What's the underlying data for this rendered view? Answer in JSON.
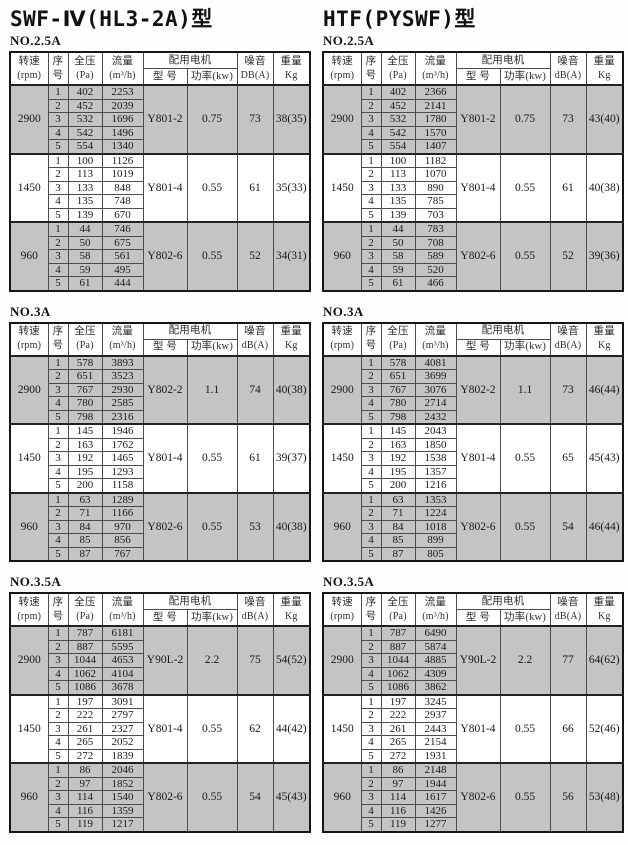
{
  "row_numbers": [
    "1",
    "2",
    "3",
    "4",
    "5"
  ],
  "header": {
    "speed": "转速",
    "speed_unit": "(rpm)",
    "seq_top": "序",
    "seq_bottom": "号",
    "pressure": "全压",
    "pressure_unit": "(Pa)",
    "flow": "流量",
    "flow_unit": "(m³/h)",
    "motor_group": "配用电机",
    "model": "型  号",
    "power": "功率(kw)",
    "noise": "噪音",
    "weight": "重量",
    "weight_unit": "Kg"
  },
  "columns": [
    {
      "title": "SWF-Ⅳ(HL3-2A)型",
      "sections": [
        {
          "size_label": "NO.2.5A",
          "noise_unit": "DB(A)",
          "groups": [
            {
              "rpm": "2900",
              "shaded": true,
              "rows": [
                [
                  "402",
                  "2253"
                ],
                [
                  "452",
                  "2039"
                ],
                [
                  "532",
                  "1696"
                ],
                [
                  "542",
                  "1496"
                ],
                [
                  "554",
                  "1340"
                ]
              ],
              "model": "Y801-2",
              "power": "0.75",
              "noise": "73",
              "weight": "38(35)"
            },
            {
              "rpm": "1450",
              "shaded": false,
              "rows": [
                [
                  "100",
                  "1126"
                ],
                [
                  "113",
                  "1019"
                ],
                [
                  "133",
                  "848"
                ],
                [
                  "135",
                  "748"
                ],
                [
                  "139",
                  "670"
                ]
              ],
              "model": "Y801-4",
              "power": "0.55",
              "noise": "61",
              "weight": "35(33)"
            },
            {
              "rpm": "960",
              "shaded": true,
              "rows": [
                [
                  "44",
                  "746"
                ],
                [
                  "50",
                  "675"
                ],
                [
                  "58",
                  "561"
                ],
                [
                  "59",
                  "495"
                ],
                [
                  "61",
                  "444"
                ]
              ],
              "model": "Y802-6",
              "power": "0.55",
              "noise": "52",
              "weight": "34(31)"
            }
          ]
        },
        {
          "size_label": "NO.3A",
          "noise_unit": "dB(A)",
          "groups": [
            {
              "rpm": "2900",
              "shaded": true,
              "rows": [
                [
                  "578",
                  "3893"
                ],
                [
                  "651",
                  "3523"
                ],
                [
                  "767",
                  "2930"
                ],
                [
                  "780",
                  "2585"
                ],
                [
                  "798",
                  "2316"
                ]
              ],
              "model": "Y802-2",
              "power": "1.1",
              "noise": "74",
              "weight": "40(38)"
            },
            {
              "rpm": "1450",
              "shaded": false,
              "rows": [
                [
                  "145",
                  "1946"
                ],
                [
                  "163",
                  "1762"
                ],
                [
                  "192",
                  "1465"
                ],
                [
                  "195",
                  "1293"
                ],
                [
                  "200",
                  "1158"
                ]
              ],
              "model": "Y801-4",
              "power": "0.55",
              "noise": "61",
              "weight": "39(37)"
            },
            {
              "rpm": "960",
              "shaded": true,
              "rows": [
                [
                  "63",
                  "1289"
                ],
                [
                  "71",
                  "1166"
                ],
                [
                  "84",
                  "970"
                ],
                [
                  "85",
                  "856"
                ],
                [
                  "87",
                  "767"
                ]
              ],
              "model": "Y802-6",
              "power": "0.55",
              "noise": "53",
              "weight": "40(38)"
            }
          ]
        },
        {
          "size_label": "NO.3.5A",
          "noise_unit": "dB(A)",
          "groups": [
            {
              "rpm": "2900",
              "shaded": true,
              "rows": [
                [
                  "787",
                  "6181"
                ],
                [
                  "887",
                  "5595"
                ],
                [
                  "1044",
                  "4653"
                ],
                [
                  "1062",
                  "4104"
                ],
                [
                  "1086",
                  "3678"
                ]
              ],
              "model": "Y90L-2",
              "power": "2.2",
              "noise": "75",
              "weight": "54(52)"
            },
            {
              "rpm": "1450",
              "shaded": false,
              "rows": [
                [
                  "197",
                  "3091"
                ],
                [
                  "222",
                  "2797"
                ],
                [
                  "261",
                  "2327"
                ],
                [
                  "265",
                  "2052"
                ],
                [
                  "272",
                  "1839"
                ]
              ],
              "model": "Y801-4",
              "power": "0.55",
              "noise": "62",
              "weight": "44(42)"
            },
            {
              "rpm": "960",
              "shaded": true,
              "rows": [
                [
                  "86",
                  "2046"
                ],
                [
                  "97",
                  "1852"
                ],
                [
                  "114",
                  "1540"
                ],
                [
                  "116",
                  "1359"
                ],
                [
                  "119",
                  "1217"
                ]
              ],
              "model": "Y802-6",
              "power": "0.55",
              "noise": "54",
              "weight": "45(43)"
            }
          ]
        }
      ]
    },
    {
      "title": "HTF(PYSWF)型",
      "sections": [
        {
          "size_label": "NO.2.5A",
          "noise_unit": "dB(A)",
          "groups": [
            {
              "rpm": "2900",
              "shaded": true,
              "rows": [
                [
                  "402",
                  "2366"
                ],
                [
                  "452",
                  "2141"
                ],
                [
                  "532",
                  "1780"
                ],
                [
                  "542",
                  "1570"
                ],
                [
                  "554",
                  "1407"
                ]
              ],
              "model": "Y801-2",
              "power": "0.75",
              "noise": "73",
              "weight": "43(40)"
            },
            {
              "rpm": "1450",
              "shaded": false,
              "rows": [
                [
                  "100",
                  "1182"
                ],
                [
                  "113",
                  "1070"
                ],
                [
                  "133",
                  "890"
                ],
                [
                  "135",
                  "785"
                ],
                [
                  "139",
                  "703"
                ]
              ],
              "model": "Y801-4",
              "power": "0.55",
              "noise": "61",
              "weight": "40(38)"
            },
            {
              "rpm": "960",
              "shaded": true,
              "rows": [
                [
                  "44",
                  "783"
                ],
                [
                  "50",
                  "708"
                ],
                [
                  "58",
                  "589"
                ],
                [
                  "59",
                  "520"
                ],
                [
                  "61",
                  "466"
                ]
              ],
              "model": "Y802-6",
              "power": "0.55",
              "noise": "52",
              "weight": "39(36)"
            }
          ]
        },
        {
          "size_label": "NO.3A",
          "noise_unit": "dB(A)",
          "groups": [
            {
              "rpm": "2900",
              "shaded": true,
              "rows": [
                [
                  "578",
                  "4081"
                ],
                [
                  "651",
                  "3699"
                ],
                [
                  "767",
                  "3076"
                ],
                [
                  "780",
                  "2714"
                ],
                [
                  "798",
                  "2432"
                ]
              ],
              "model": "Y802-2",
              "power": "1.1",
              "noise": "73",
              "weight": "46(44)"
            },
            {
              "rpm": "1450",
              "shaded": false,
              "rows": [
                [
                  "145",
                  "2043"
                ],
                [
                  "163",
                  "1850"
                ],
                [
                  "192",
                  "1538"
                ],
                [
                  "195",
                  "1357"
                ],
                [
                  "200",
                  "1216"
                ]
              ],
              "model": "Y801-4",
              "power": "0.55",
              "noise": "65",
              "weight": "45(43)"
            },
            {
              "rpm": "960",
              "shaded": true,
              "rows": [
                [
                  "63",
                  "1353"
                ],
                [
                  "71",
                  "1224"
                ],
                [
                  "84",
                  "1018"
                ],
                [
                  "85",
                  "899"
                ],
                [
                  "87",
                  "805"
                ]
              ],
              "model": "Y802-6",
              "power": "0.55",
              "noise": "54",
              "weight": "46(44)"
            }
          ]
        },
        {
          "size_label": "NO.3.5A",
          "noise_unit": "dB(A)",
          "groups": [
            {
              "rpm": "2900",
              "shaded": true,
              "rows": [
                [
                  "787",
                  "6490"
                ],
                [
                  "887",
                  "5874"
                ],
                [
                  "1044",
                  "4885"
                ],
                [
                  "1062",
                  "4309"
                ],
                [
                  "1086",
                  "3862"
                ]
              ],
              "model": "Y90L-2",
              "power": "2.2",
              "noise": "77",
              "weight": "64(62)"
            },
            {
              "rpm": "1450",
              "shaded": false,
              "rows": [
                [
                  "197",
                  "3245"
                ],
                [
                  "222",
                  "2937"
                ],
                [
                  "261",
                  "2443"
                ],
                [
                  "265",
                  "2154"
                ],
                [
                  "272",
                  "1931"
                ]
              ],
              "model": "Y801-4",
              "power": "0.55",
              "noise": "66",
              "weight": "52(46)"
            },
            {
              "rpm": "960",
              "shaded": true,
              "rows": [
                [
                  "86",
                  "2148"
                ],
                [
                  "97",
                  "1944"
                ],
                [
                  "114",
                  "1617"
                ],
                [
                  "116",
                  "1426"
                ],
                [
                  "119",
                  "1277"
                ]
              ],
              "model": "Y802-6",
              "power": "0.55",
              "noise": "56",
              "weight": "53(48)"
            }
          ]
        }
      ]
    }
  ]
}
